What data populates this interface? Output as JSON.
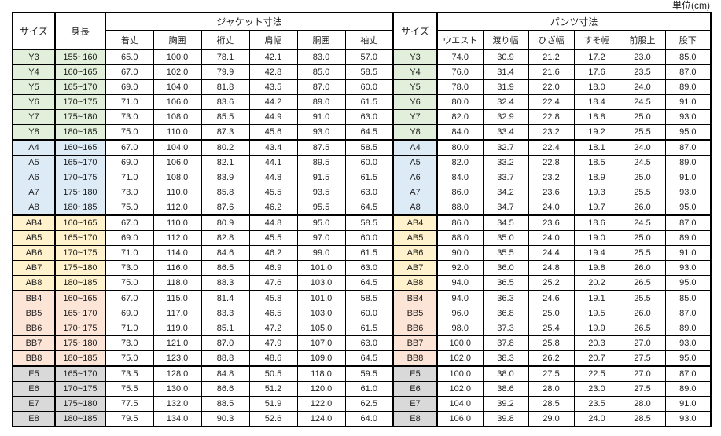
{
  "unit_label": "単位(cm)",
  "table": {
    "headers": {
      "size": "サイズ",
      "height": "身長",
      "jacket_group": "ジャケット寸法",
      "size2": "サイズ",
      "pants_group": "パンツ寸法",
      "jacket_cols": [
        "着丈",
        "胸囲",
        "裄丈",
        "肩幅",
        "胴囲",
        "袖丈"
      ],
      "pants_cols": [
        "ウエスト",
        "渡り幅",
        "ひざ幅",
        "すそ幅",
        "前股上",
        "股下"
      ]
    },
    "groups": [
      {
        "name": "Y",
        "color": "#E2EFDA",
        "rows": [
          {
            "size": "Y3",
            "height": "155~160",
            "jacket": [
              "65.0",
              "100.0",
              "78.1",
              "42.1",
              "83.0",
              "57.0"
            ],
            "pants": [
              "74.0",
              "30.9",
              "21.2",
              "17.2",
              "23.0",
              "85.0"
            ]
          },
          {
            "size": "Y4",
            "height": "160~165",
            "jacket": [
              "67.0",
              "102.0",
              "79.9",
              "42.8",
              "85.0",
              "58.5"
            ],
            "pants": [
              "76.0",
              "31.4",
              "21.6",
              "17.6",
              "23.5",
              "87.0"
            ]
          },
          {
            "size": "Y5",
            "height": "165~170",
            "jacket": [
              "69.0",
              "104.0",
              "81.8",
              "43.5",
              "87.0",
              "60.0"
            ],
            "pants": [
              "78.0",
              "31.9",
              "22.0",
              "18.0",
              "24.0",
              "89.0"
            ]
          },
          {
            "size": "Y6",
            "height": "170~175",
            "jacket": [
              "71.0",
              "106.0",
              "83.6",
              "44.2",
              "89.0",
              "61.5"
            ],
            "pants": [
              "80.0",
              "32.4",
              "22.4",
              "18.4",
              "24.5",
              "91.0"
            ]
          },
          {
            "size": "Y7",
            "height": "175~180",
            "jacket": [
              "73.0",
              "108.0",
              "85.5",
              "44.9",
              "91.0",
              "63.0"
            ],
            "pants": [
              "82.0",
              "32.9",
              "22.8",
              "18.8",
              "25.0",
              "93.0"
            ]
          },
          {
            "size": "Y8",
            "height": "180~185",
            "jacket": [
              "75.0",
              "110.0",
              "87.3",
              "45.6",
              "93.0",
              "64.5"
            ],
            "pants": [
              "84.0",
              "33.4",
              "23.2",
              "19.2",
              "25.5",
              "95.0"
            ]
          }
        ]
      },
      {
        "name": "A",
        "color": "#DDEBF7",
        "rows": [
          {
            "size": "A4",
            "height": "160~165",
            "jacket": [
              "67.0",
              "104.0",
              "80.2",
              "43.4",
              "87.5",
              "58.5"
            ],
            "pants": [
              "80.0",
              "32.7",
              "22.4",
              "18.1",
              "24.0",
              "87.0"
            ]
          },
          {
            "size": "A5",
            "height": "165~170",
            "jacket": [
              "69.0",
              "106.0",
              "82.1",
              "44.1",
              "89.5",
              "60.0"
            ],
            "pants": [
              "82.0",
              "33.2",
              "22.8",
              "18.5",
              "24.5",
              "89.0"
            ]
          },
          {
            "size": "A6",
            "height": "170~175",
            "jacket": [
              "71.0",
              "108.0",
              "83.9",
              "44.8",
              "91.5",
              "61.5"
            ],
            "pants": [
              "84.0",
              "33.7",
              "23.2",
              "18.9",
              "25.0",
              "91.0"
            ]
          },
          {
            "size": "A7",
            "height": "175~180",
            "jacket": [
              "73.0",
              "110.0",
              "85.8",
              "45.5",
              "93.5",
              "63.0"
            ],
            "pants": [
              "86.0",
              "34.2",
              "23.6",
              "19.3",
              "25.5",
              "93.0"
            ]
          },
          {
            "size": "A8",
            "height": "180~185",
            "jacket": [
              "75.0",
              "112.0",
              "87.6",
              "46.2",
              "95.5",
              "64.5"
            ],
            "pants": [
              "88.0",
              "34.7",
              "24.0",
              "19.7",
              "26.0",
              "95.0"
            ]
          }
        ]
      },
      {
        "name": "AB",
        "color": "#FFF2CC",
        "rows": [
          {
            "size": "AB4",
            "height": "160~165",
            "jacket": [
              "67.0",
              "110.0",
              "80.9",
              "44.8",
              "95.0",
              "58.5"
            ],
            "pants": [
              "86.0",
              "34.5",
              "23.6",
              "18.6",
              "24.5",
              "87.0"
            ]
          },
          {
            "size": "AB5",
            "height": "165~170",
            "jacket": [
              "69.0",
              "112.0",
              "82.8",
              "45.5",
              "97.0",
              "60.0"
            ],
            "pants": [
              "88.0",
              "35.0",
              "24.0",
              "19.0",
              "25.0",
              "89.0"
            ]
          },
          {
            "size": "AB6",
            "height": "170~175",
            "jacket": [
              "71.0",
              "114.0",
              "84.6",
              "46.2",
              "99.0",
              "61.5"
            ],
            "pants": [
              "90.0",
              "35.5",
              "24.4",
              "19.4",
              "25.5",
              "91.0"
            ]
          },
          {
            "size": "AB7",
            "height": "175~180",
            "jacket": [
              "73.0",
              "116.0",
              "86.5",
              "46.9",
              "101.0",
              "63.0"
            ],
            "pants": [
              "92.0",
              "36.0",
              "24.8",
              "19.8",
              "26.0",
              "93.0"
            ]
          },
          {
            "size": "AB8",
            "height": "180~185",
            "jacket": [
              "75.0",
              "118.0",
              "88.3",
              "47.6",
              "103.0",
              "64.5"
            ],
            "pants": [
              "94.0",
              "36.5",
              "25.2",
              "20.2",
              "26.5",
              "95.0"
            ]
          }
        ]
      },
      {
        "name": "BB",
        "color": "#FCE4D6",
        "rows": [
          {
            "size": "BB4",
            "height": "160~165",
            "jacket": [
              "67.0",
              "115.0",
              "81.4",
              "45.8",
              "101.0",
              "58.5"
            ],
            "pants": [
              "94.0",
              "36.3",
              "24.6",
              "19.1",
              "25.5",
              "85.0"
            ]
          },
          {
            "size": "BB5",
            "height": "165~170",
            "jacket": [
              "69.0",
              "117.0",
              "83.3",
              "46.5",
              "103.0",
              "60.0"
            ],
            "pants": [
              "96.0",
              "36.8",
              "25.0",
              "19.5",
              "26.0",
              "87.0"
            ]
          },
          {
            "size": "BB6",
            "height": "170~175",
            "jacket": [
              "71.0",
              "119.0",
              "85.1",
              "47.2",
              "105.0",
              "61.5"
            ],
            "pants": [
              "98.0",
              "37.3",
              "25.4",
              "19.9",
              "26.5",
              "89.0"
            ]
          },
          {
            "size": "BB7",
            "height": "175~180",
            "jacket": [
              "73.0",
              "121.0",
              "87.0",
              "47.9",
              "107.0",
              "63.0"
            ],
            "pants": [
              "100.0",
              "37.8",
              "25.8",
              "20.3",
              "27.0",
              "93.0"
            ]
          },
          {
            "size": "BB8",
            "height": "180~185",
            "jacket": [
              "75.0",
              "123.0",
              "88.8",
              "48.6",
              "109.0",
              "64.5"
            ],
            "pants": [
              "102.0",
              "38.3",
              "26.2",
              "20.7",
              "27.5",
              "95.0"
            ]
          }
        ]
      },
      {
        "name": "E",
        "color": "#D9D9D9",
        "rows": [
          {
            "size": "E5",
            "height": "165~170",
            "jacket": [
              "73.5",
              "128.0",
              "84.8",
              "50.5",
              "118.0",
              "59.5"
            ],
            "pants": [
              "100.0",
              "38.0",
              "27.5",
              "22.5",
              "27.0",
              "87.0"
            ]
          },
          {
            "size": "E6",
            "height": "170~175",
            "jacket": [
              "75.5",
              "130.0",
              "86.6",
              "51.2",
              "120.0",
              "61.0"
            ],
            "pants": [
              "102.0",
              "38.6",
              "28.0",
              "23.0",
              "27.5",
              "89.0"
            ]
          },
          {
            "size": "E7",
            "height": "175~180",
            "jacket": [
              "77.5",
              "132.0",
              "88.5",
              "51.9",
              "122.0",
              "62.5"
            ],
            "pants": [
              "104.0",
              "39.2",
              "28.5",
              "23.5",
              "28.0",
              "91.0"
            ]
          },
          {
            "size": "E8",
            "height": "180~185",
            "jacket": [
              "79.5",
              "134.0",
              "90.3",
              "52.6",
              "124.0",
              "64.0"
            ],
            "pants": [
              "106.0",
              "39.8",
              "29.0",
              "24.0",
              "28.5",
              "93.0"
            ]
          }
        ]
      }
    ]
  }
}
